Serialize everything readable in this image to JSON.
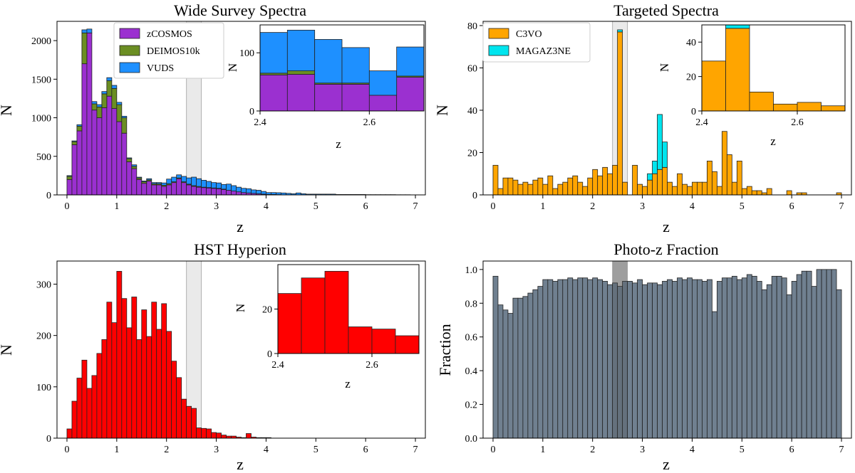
{
  "figure": {
    "colors": {
      "zCOSMOS": "#9b30d0",
      "DEIMOS10k": "#6b8e23",
      "VUDS": "#1e90ff",
      "C3VO": "#ffa500",
      "MAGAZ3NE": "#00e5ee",
      "HST": "#ff0000",
      "photoz": "#708090",
      "shade": "#d0d0d0"
    }
  },
  "chart_data": [
    {
      "id": "wide",
      "type": "bar",
      "stacked": true,
      "title": "Wide Survey Spectra",
      "xlabel": "z",
      "ylabel": "N",
      "xlim": [
        -0.2,
        7.2
      ],
      "ylim": [
        0,
        2250
      ],
      "xticks": [
        0,
        1,
        2,
        3,
        4,
        5,
        6,
        7
      ],
      "yticks": [
        0,
        500,
        1000,
        1500,
        2000
      ],
      "bin_start": 0.0,
      "bin_width": 0.1,
      "shade": [
        2.4,
        2.7
      ],
      "legend": {
        "placement": "top-center",
        "entries": [
          "zCOSMOS",
          "DEIMOS10k",
          "VUDS"
        ]
      },
      "series": [
        {
          "name": "zCOSMOS",
          "color_key": "zCOSMOS",
          "values": [
            200,
            650,
            830,
            1700,
            2100,
            1100,
            1000,
            1130,
            1280,
            1120,
            950,
            800,
            430,
            340,
            200,
            150,
            180,
            130,
            130,
            110,
            130,
            160,
            210,
            160,
            130,
            110,
            100,
            95,
            90,
            85,
            80,
            70,
            60,
            50,
            40,
            30,
            25,
            20,
            15,
            10,
            5,
            5,
            3,
            0,
            0,
            0,
            0,
            0,
            0,
            0,
            0,
            0,
            0,
            0,
            0,
            0,
            0,
            0,
            0,
            0,
            0,
            0,
            0,
            0,
            0,
            0,
            0,
            0,
            0,
            0
          ]
        },
        {
          "name": "DEIMOS10k",
          "color_key": "DEIMOS10k",
          "values": [
            40,
            40,
            60,
            400,
            0,
            80,
            140,
            180,
            200,
            260,
            220,
            200,
            40,
            30,
            20,
            20,
            15,
            15,
            15,
            15,
            15,
            10,
            10,
            10,
            10,
            10,
            10,
            5,
            5,
            5,
            5,
            5,
            0,
            0,
            0,
            0,
            0,
            0,
            0,
            0,
            0,
            0,
            0,
            0,
            0,
            0,
            0,
            0,
            0,
            0,
            0,
            0,
            0,
            0,
            0,
            0,
            0,
            0,
            0,
            0,
            0,
            0,
            0,
            0,
            0,
            0,
            0,
            0,
            0,
            0
          ]
        },
        {
          "name": "VUDS",
          "color_key": "VUDS",
          "values": [
            10,
            10,
            20,
            40,
            50,
            30,
            30,
            30,
            40,
            40,
            30,
            20,
            10,
            20,
            10,
            10,
            15,
            15,
            15,
            30,
            60,
            60,
            40,
            70,
            80,
            110,
            100,
            90,
            80,
            70,
            70,
            60,
            80,
            70,
            60,
            55,
            55,
            45,
            45,
            35,
            25,
            25,
            25,
            25,
            20,
            15,
            25,
            15,
            10,
            10,
            10,
            10,
            10,
            10,
            5,
            5,
            5,
            5,
            5,
            5,
            3,
            3,
            3,
            3,
            3,
            3,
            2,
            2,
            2,
            0
          ]
        }
      ],
      "inset": {
        "xlabel": "z",
        "ylabel": "N",
        "xlim": [
          2.4,
          2.7
        ],
        "ylim": [
          0,
          148
        ],
        "xticks": [
          2.4,
          2.6
        ],
        "yticks": [
          0,
          100
        ],
        "bin_start": 2.4,
        "bin_width": 0.05,
        "series": [
          {
            "name": "zCOSMOS",
            "color_key": "zCOSMOS",
            "values": [
              62,
              63,
              46,
              46,
              27,
              58
            ]
          },
          {
            "name": "DEIMOS10k",
            "color_key": "DEIMOS10k",
            "values": [
              3,
              6,
              2,
              2,
              0,
              2
            ]
          },
          {
            "name": "VUDS",
            "color_key": "VUDS",
            "values": [
              70,
              70,
              75,
              61,
              42,
              50
            ]
          }
        ]
      }
    },
    {
      "id": "targeted",
      "type": "bar",
      "stacked": true,
      "title": "Targeted Spectra",
      "xlabel": "z",
      "ylabel": "N",
      "xlim": [
        -0.2,
        7.2
      ],
      "ylim": [
        0,
        82
      ],
      "xticks": [
        0,
        1,
        2,
        3,
        4,
        5,
        6,
        7
      ],
      "yticks": [
        0,
        20,
        40,
        60,
        80
      ],
      "bin_start": 0.0,
      "bin_width": 0.1,
      "shade": [
        2.4,
        2.7
      ],
      "legend": {
        "placement": "top-left",
        "entries": [
          "C3VO",
          "MAGAZ3NE"
        ]
      },
      "series": [
        {
          "name": "C3VO",
          "color_key": "C3VO",
          "values": [
            14,
            3,
            8,
            8,
            7,
            5,
            6,
            5,
            7,
            8,
            5,
            9,
            3,
            5,
            6,
            8,
            9,
            6,
            4,
            8,
            12,
            9,
            13,
            10,
            14,
            77,
            6,
            0,
            14,
            5,
            4,
            7,
            10,
            12,
            13,
            6,
            4,
            10,
            5,
            4,
            6,
            6,
            6,
            16,
            11,
            4,
            30,
            19,
            6,
            16,
            3,
            4,
            2,
            2,
            1,
            3,
            0,
            0,
            0,
            2,
            0,
            1,
            1,
            0,
            0,
            0,
            0,
            0,
            0,
            1
          ]
        },
        {
          "name": "MAGAZ3NE",
          "color_key": "MAGAZ3NE",
          "values": [
            0,
            0,
            0,
            0,
            0,
            0,
            0,
            0,
            0,
            0,
            0,
            0,
            0,
            0,
            0,
            0,
            0,
            0,
            0,
            0,
            0,
            0,
            0,
            0,
            0,
            1,
            0,
            0,
            0,
            0,
            0,
            3,
            6,
            26,
            12,
            0,
            0,
            0,
            0,
            0,
            0,
            0,
            0,
            0,
            0,
            0,
            0,
            0,
            0,
            0,
            0,
            0,
            0,
            0,
            0,
            0,
            0,
            0,
            0,
            0,
            0,
            0,
            0,
            0,
            0,
            0,
            0,
            0,
            0,
            0
          ]
        }
      ],
      "inset": {
        "xlabel": "z",
        "ylabel": "N",
        "xlim": [
          2.4,
          2.7
        ],
        "ylim": [
          0,
          50
        ],
        "xticks": [
          2.4,
          2.6
        ],
        "yticks": [
          0,
          20,
          40
        ],
        "bin_start": 2.4,
        "bin_width": 0.05,
        "series": [
          {
            "name": "C3VO",
            "color_key": "C3VO",
            "values": [
              29,
              48,
              11,
              4,
              5,
              3
            ]
          },
          {
            "name": "MAGAZ3NE",
            "color_key": "MAGAZ3NE",
            "values": [
              0,
              2,
              0,
              0,
              0,
              0
            ]
          }
        ]
      }
    },
    {
      "id": "hst",
      "type": "bar",
      "stacked": false,
      "title": "HST Hyperion",
      "xlabel": "z",
      "ylabel": "N",
      "xlim": [
        -0.2,
        7.2
      ],
      "ylim": [
        0,
        345
      ],
      "xticks": [
        0,
        1,
        2,
        3,
        4,
        5,
        6,
        7
      ],
      "yticks": [
        0,
        100,
        200,
        300
      ],
      "bin_start": 0.0,
      "bin_width": 0.1,
      "shade": [
        2.4,
        2.7
      ],
      "series": [
        {
          "name": "HST",
          "color_key": "HST",
          "values": [
            18,
            72,
            117,
            152,
            97,
            122,
            165,
            192,
            265,
            225,
            325,
            272,
            215,
            275,
            192,
            250,
            198,
            265,
            212,
            262,
            208,
            150,
            118,
            76,
            62,
            58,
            20,
            19,
            18,
            11,
            10,
            6,
            4,
            4,
            2,
            1,
            9,
            2,
            1,
            1,
            1,
            0,
            0,
            0,
            0,
            0,
            0,
            0,
            0,
            0,
            0,
            0,
            0,
            0,
            0,
            0,
            0,
            0,
            0,
            0,
            0,
            0,
            0,
            0,
            0,
            0,
            0,
            0,
            0,
            0
          ]
        }
      ],
      "inset": {
        "xlabel": "z",
        "ylabel": "N",
        "xlim": [
          2.4,
          2.7
        ],
        "ylim": [
          0,
          40
        ],
        "xticks": [
          2.4,
          2.6
        ],
        "yticks": [
          0,
          20
        ],
        "bin_start": 2.4,
        "bin_width": 0.05,
        "series": [
          {
            "name": "HST",
            "color_key": "HST",
            "values": [
              27,
              34,
              37,
              12,
              11,
              8
            ]
          }
        ]
      }
    },
    {
      "id": "photoz",
      "type": "bar",
      "stacked": false,
      "title": "Photo-z Fraction",
      "xlabel": "z",
      "ylabel": "Fraction",
      "xlim": [
        -0.2,
        7.2
      ],
      "ylim": [
        0,
        1.05
      ],
      "xticks": [
        0,
        1,
        2,
        3,
        4,
        5,
        6,
        7
      ],
      "yticks": [
        0.0,
        0.2,
        0.4,
        0.6,
        0.8,
        1.0
      ],
      "ytick_labels": [
        "0.0",
        "0.2",
        "0.4",
        "0.6",
        "0.8",
        "1.0"
      ],
      "bin_start": 0.0,
      "bin_width": 0.1,
      "shade": [
        2.4,
        2.7
      ],
      "shade_dark": true,
      "series": [
        {
          "name": "Photo-z Fraction",
          "color_key": "photoz",
          "values": [
            0.96,
            0.79,
            0.76,
            0.74,
            0.83,
            0.83,
            0.84,
            0.86,
            0.88,
            0.9,
            0.94,
            0.94,
            0.93,
            0.94,
            0.94,
            0.95,
            0.94,
            0.95,
            0.95,
            0.94,
            0.95,
            0.94,
            0.93,
            0.91,
            0.92,
            0.9,
            0.93,
            0.93,
            0.92,
            0.94,
            0.91,
            0.92,
            0.92,
            0.91,
            0.93,
            0.94,
            0.93,
            0.95,
            0.94,
            0.95,
            0.94,
            0.94,
            0.93,
            0.94,
            0.75,
            0.93,
            0.95,
            0.95,
            0.96,
            0.94,
            0.95,
            0.97,
            0.96,
            0.93,
            0.88,
            0.91,
            0.96,
            0.96,
            0.95,
            0.85,
            0.93,
            0.97,
            0.99,
            0.99,
            0.9,
            1.0,
            1.0,
            1.0,
            1.0,
            0.88
          ]
        }
      ]
    }
  ]
}
